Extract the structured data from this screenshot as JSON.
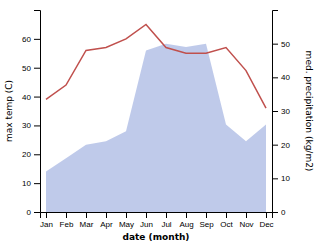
{
  "chart_data": {
    "type": "line",
    "categories": [
      "Jan",
      "Feb",
      "Mar",
      "Apr",
      "May",
      "Jun",
      "Jul",
      "Aug",
      "Sep",
      "Oct",
      "Nov",
      "Dec"
    ],
    "xlabel": "date (month)",
    "ylabel": "max temp (C)",
    "y2label": "med. precipitation (kg/m2)",
    "series": [
      {
        "type": "area",
        "axis": "y2",
        "color": "#b8c4e8",
        "values": [
          12,
          16,
          20,
          21,
          24,
          48,
          50,
          49,
          50,
          26,
          21,
          26
        ]
      },
      {
        "type": "line",
        "color": "#c0504d",
        "values": [
          39,
          44,
          56,
          57,
          60,
          65,
          57,
          55,
          55,
          57,
          49,
          36
        ]
      }
    ],
    "ylim": [
      0,
      70
    ],
    "yticks": [
      0,
      10,
      20,
      30,
      40,
      50,
      60
    ],
    "y2lim": [
      0,
      60
    ],
    "y2ticks": [
      0,
      10,
      20,
      30,
      40,
      50
    ],
    "grid": false
  }
}
